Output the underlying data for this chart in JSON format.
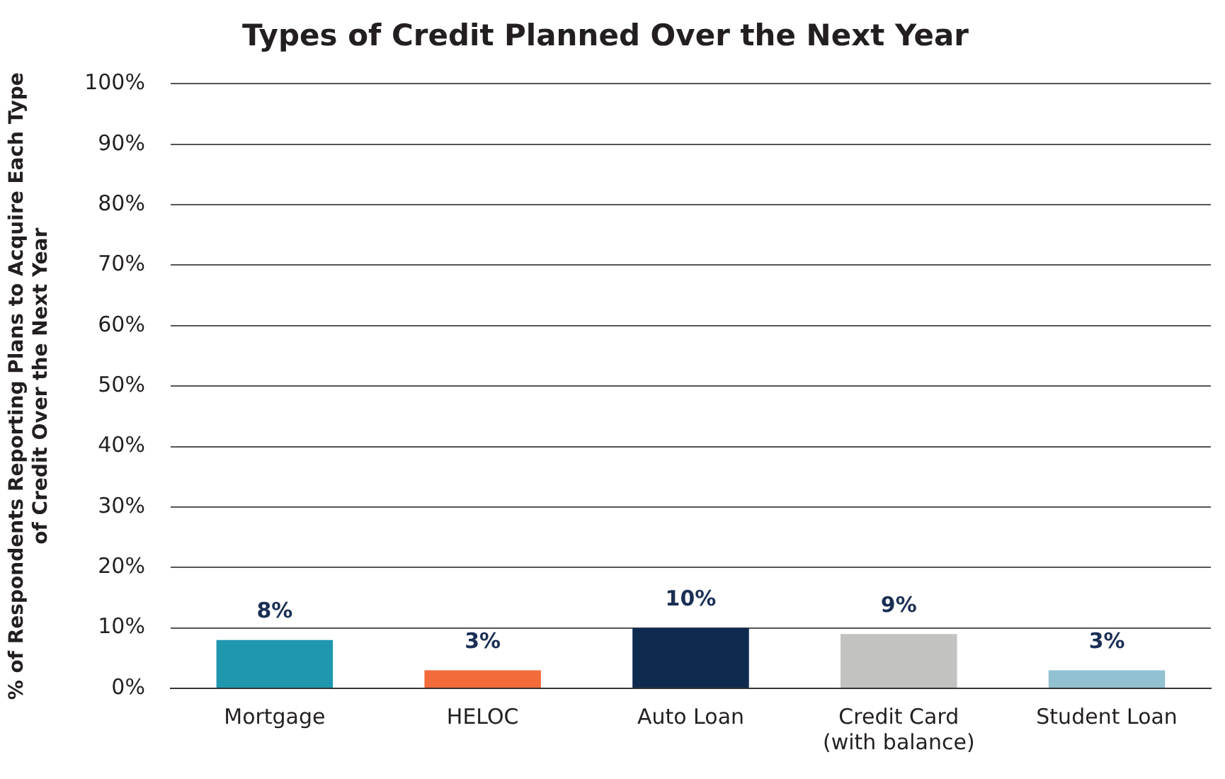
{
  "chart_data": {
    "type": "bar",
    "title": "Types of Credit Planned Over the Next Year",
    "ylabel": "% of Respondents Reporting Plans to Acquire Each Type\nof Credit Over the Next Year",
    "categories": [
      "Mortgage",
      "HELOC",
      "Auto Loan",
      "Credit Card\n(with balance)",
      "Student Loan"
    ],
    "values": [
      8,
      3,
      10,
      9,
      3
    ],
    "colors": [
      "#1f97ae",
      "#f26b3a",
      "#0e2a4f",
      "#c2c2c0",
      "#92c1d1"
    ],
    "ylim": [
      0,
      100
    ],
    "yticks": [
      {
        "value": 0,
        "label": "0%"
      },
      {
        "value": 10,
        "label": "10%"
      },
      {
        "value": 20,
        "label": "20%"
      },
      {
        "value": 30,
        "label": "30%"
      },
      {
        "value": 40,
        "label": "40%"
      },
      {
        "value": 50,
        "label": "50%"
      },
      {
        "value": 60,
        "label": "60%"
      },
      {
        "value": 70,
        "label": "70%"
      },
      {
        "value": 80,
        "label": "80%"
      },
      {
        "value": 90,
        "label": "90%"
      },
      {
        "value": 100,
        "label": "100%"
      }
    ],
    "value_labels": [
      "8%",
      "3%",
      "10%",
      "9%",
      "3%"
    ],
    "grid": "y",
    "legend": false
  }
}
